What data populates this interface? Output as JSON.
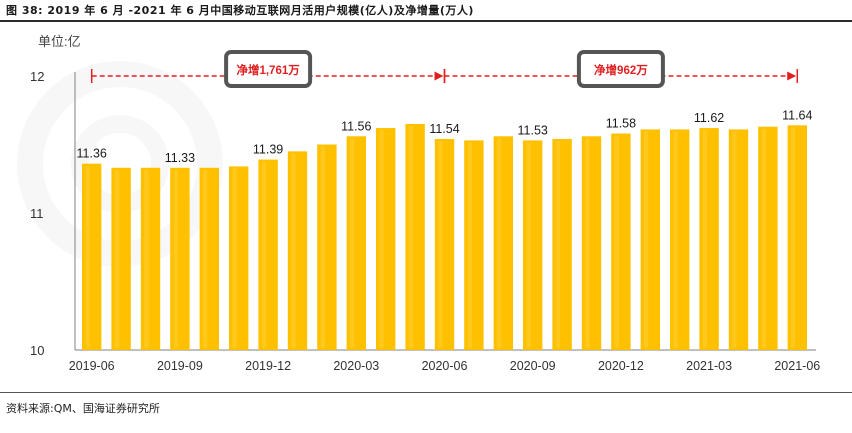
{
  "caption": "图 38:  2019 年 6 月 -2021 年 6 月中国移动互联网月活用户规模(亿人)及净增量(万人)",
  "source": "资料来源:QM、国海证券研究所",
  "colors": {
    "bar": "#FFC000",
    "bar_highlight": "#FFD23F",
    "arrow": "#E02020",
    "box_border": "#555555",
    "axis": "#808080",
    "label_text": "#333333"
  },
  "chart_data": {
    "type": "bar",
    "unit_label": "单位:亿",
    "ylim": [
      10,
      12
    ],
    "yticks": [
      "10",
      "11",
      "12"
    ],
    "xtick_labels": [
      "2019-06",
      "2019-09",
      "2019-12",
      "2020-03",
      "2020-06",
      "2020-09",
      "2020-12",
      "2021-03",
      "2021-06"
    ],
    "categories": [
      "2019-06",
      "2019-07",
      "2019-08",
      "2019-09",
      "2019-10",
      "2019-11",
      "2019-12",
      "2020-01",
      "2020-02",
      "2020-03",
      "2020-04",
      "2020-05",
      "2020-06",
      "2020-07",
      "2020-08",
      "2020-09",
      "2020-10",
      "2020-11",
      "2020-12",
      "2021-01",
      "2021-02",
      "2021-03",
      "2021-04",
      "2021-05",
      "2021-06"
    ],
    "values": [
      11.36,
      11.33,
      11.33,
      11.33,
      11.33,
      11.34,
      11.39,
      11.45,
      11.5,
      11.56,
      11.62,
      11.65,
      11.54,
      11.53,
      11.56,
      11.53,
      11.54,
      11.56,
      11.58,
      11.61,
      11.61,
      11.62,
      11.61,
      11.63,
      11.64
    ],
    "data_labels": [
      {
        "category": "2019-06",
        "text": "11.36"
      },
      {
        "category": "2019-09",
        "text": "11.33"
      },
      {
        "category": "2019-12",
        "text": "11.39"
      },
      {
        "category": "2020-03",
        "text": "11.56"
      },
      {
        "category": "2020-06",
        "text": "11.54"
      },
      {
        "category": "2020-09",
        "text": "11.53"
      },
      {
        "category": "2020-12",
        "text": "11.58"
      },
      {
        "category": "2021-03",
        "text": "11.62"
      },
      {
        "category": "2021-06",
        "text": "11.64"
      }
    ],
    "annotations": [
      {
        "text": "净增1,761万",
        "from": "2019-06",
        "to": "2020-06"
      },
      {
        "text": "净增962万",
        "from": "2020-06",
        "to": "2021-06"
      }
    ]
  }
}
